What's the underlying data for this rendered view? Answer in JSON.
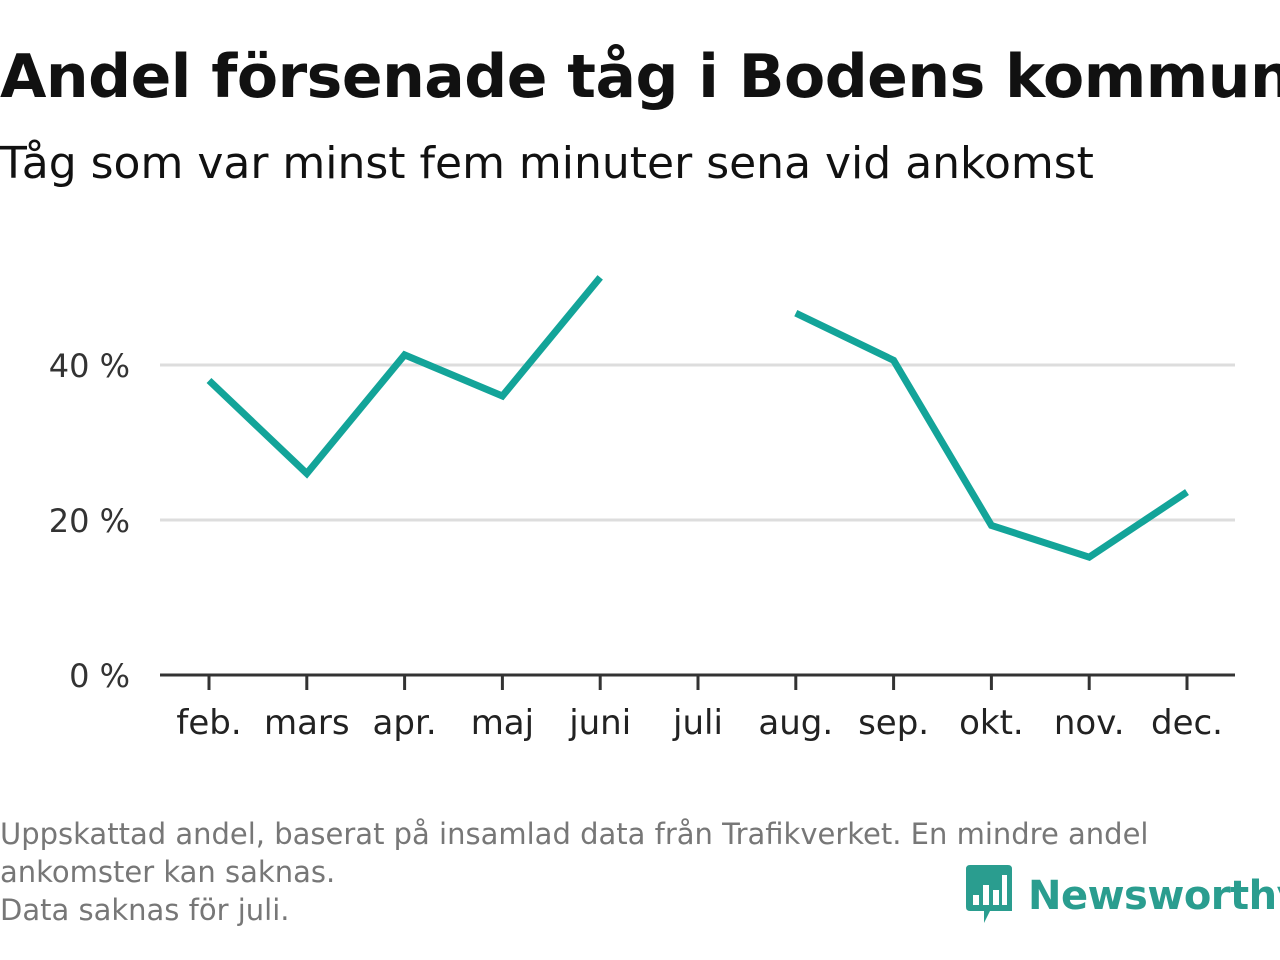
{
  "title": "Andel försenade tåg i Bodens kommun",
  "subtitle": "Tåg som var minst fem minuter sena vid ankomst",
  "notes": [
    "Uppskattad andel, baserat på insamlad data från Trafikverket. En mindre andel",
    "ankomster kan saknas.",
    "Data saknas för juli."
  ],
  "brand": {
    "name": "Newsworthy",
    "color": "#2a9d8f",
    "icon": "newsworthy-logo-icon"
  },
  "chart_data": {
    "type": "line",
    "title": "Andel försenade tåg i Bodens kommun",
    "subtitle": "Tåg som var minst fem minuter sena vid ankomst",
    "categories": [
      "feb.",
      "mars",
      "apr.",
      "maj",
      "juni",
      "juli",
      "aug.",
      "sep.",
      "okt.",
      "nov.",
      "dec."
    ],
    "values": [
      38,
      26,
      41.3,
      36,
      51.3,
      null,
      46.7,
      40.6,
      19.3,
      15.2,
      23.6
    ],
    "y_ticks": [
      0,
      20,
      40
    ],
    "y_tick_labels": [
      "0 %",
      "20 %",
      "40 %"
    ],
    "ylim": [
      0,
      52
    ],
    "grid": true,
    "line_color": "#13a499",
    "grid_color": "#dddddd",
    "axis_color": "#333333",
    "legend": "none"
  }
}
